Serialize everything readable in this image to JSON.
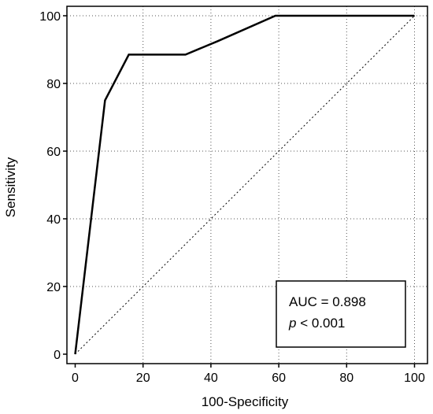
{
  "chart_data": {
    "type": "line",
    "xlabel": "100-Specificity",
    "ylabel": "Sensitivity",
    "xlim": [
      0,
      100
    ],
    "ylim": [
      0,
      100
    ],
    "x_ticks": [
      0,
      20,
      40,
      60,
      80,
      100
    ],
    "y_ticks": [
      0,
      20,
      40,
      60,
      80,
      100
    ],
    "grid": true,
    "series": [
      {
        "color": "#000000",
        "x": [
          0,
          8.8,
          15.8,
          32.5,
          42,
          59,
          100
        ],
        "y": [
          0,
          75,
          88.5,
          88.5,
          92.5,
          100,
          100
        ]
      }
    ],
    "reference_line": {
      "x": [
        0,
        100
      ],
      "y": [
        0,
        100
      ],
      "style": "dotted"
    },
    "annotation": {
      "placement": "bottom-right",
      "line1": "AUC = 0.898",
      "line2_italic": "p",
      "line2_rest": " < 0.001"
    }
  }
}
